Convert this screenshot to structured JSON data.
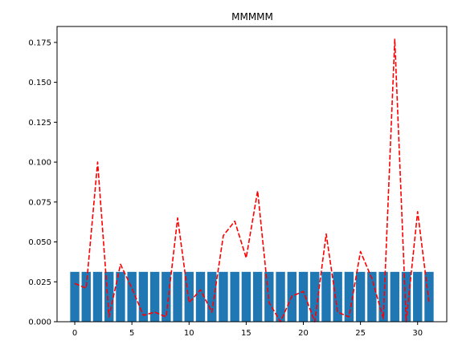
{
  "chart_data": {
    "type": "bar",
    "title": "MMMMM",
    "xlabel": "",
    "ylabel": "",
    "x": [
      0,
      1,
      2,
      3,
      4,
      5,
      6,
      7,
      8,
      9,
      10,
      11,
      12,
      13,
      14,
      15,
      16,
      17,
      18,
      19,
      20,
      21,
      22,
      23,
      24,
      25,
      26,
      27,
      28,
      29,
      30,
      31
    ],
    "xlim": [
      -1.55,
      32.55
    ],
    "ylim": [
      0,
      0.185
    ],
    "xticks": [
      0,
      5,
      10,
      15,
      20,
      25,
      30
    ],
    "xtick_labels": [
      "0",
      "5",
      "10",
      "15",
      "20",
      "25",
      "30"
    ],
    "yticks": [
      0,
      0.025,
      0.05,
      0.075,
      0.1,
      0.125,
      0.15,
      0.175
    ],
    "ytick_labels": [
      "0.000",
      "0.025",
      "0.050",
      "0.075",
      "0.100",
      "0.125",
      "0.150",
      "0.175"
    ],
    "grid": false,
    "series": [
      {
        "type": "bar",
        "color": "#1f77b4",
        "values": [
          0.03125,
          0.03125,
          0.03125,
          0.03125,
          0.03125,
          0.03125,
          0.03125,
          0.03125,
          0.03125,
          0.03125,
          0.03125,
          0.03125,
          0.03125,
          0.03125,
          0.03125,
          0.03125,
          0.03125,
          0.03125,
          0.03125,
          0.03125,
          0.03125,
          0.03125,
          0.03125,
          0.03125,
          0.03125,
          0.03125,
          0.03125,
          0.03125,
          0.03125,
          0.03125,
          0.03125,
          0.03125
        ]
      },
      {
        "type": "line",
        "color": "#ff0000",
        "linestyle": "dashed",
        "values": [
          0.024,
          0.021,
          0.1,
          0.003,
          0.036,
          0.021,
          0.004,
          0.006,
          0.003,
          0.065,
          0.012,
          0.02,
          0.006,
          0.054,
          0.063,
          0.04,
          0.082,
          0.012,
          0.0,
          0.016,
          0.019,
          0.0,
          0.055,
          0.006,
          0.003,
          0.044,
          0.027,
          0.002,
          0.177,
          0.0,
          0.069,
          0.012
        ]
      }
    ]
  }
}
